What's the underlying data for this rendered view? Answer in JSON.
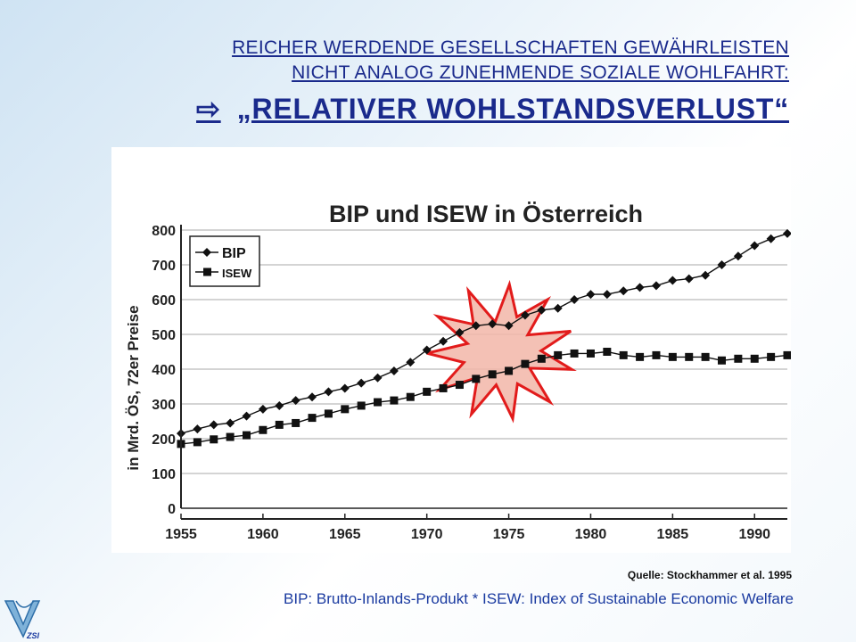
{
  "header": {
    "line1": "REICHER WERDENDE GESELLSCHAFTEN GEWÄHRLEISTEN",
    "line2": "NICHT ANALOG ZUNEHMENDE SOZIALE WOHLFAHRT:",
    "arrow_glyph": "⇨",
    "headline": "„RELATIVER WOHLSTANDSVERLUST“"
  },
  "source_note": "Quelle:  Stockhammer et al. 1995",
  "footer_note": "BIP: Brutto-Inlands-Produkt  *  ISEW: Index of Sustainable Economic Welfare",
  "logo_text": "ZSI",
  "colors": {
    "title_blue": "#1a2a8c",
    "footer_blue": "#1a3aa0",
    "starburst_stroke": "#e21b1b",
    "starburst_fill": "#f2b6a8",
    "underline_red": "#e21b1b"
  },
  "chart_data": {
    "type": "line",
    "title": "BIP und ISEW in Österreich",
    "ylabel": "in Mrd. ÖS, 72er Preise",
    "xlabel": "",
    "xlim": [
      1955,
      1992
    ],
    "ylim": [
      0,
      800
    ],
    "xticks": [
      1955,
      1960,
      1965,
      1970,
      1975,
      1980,
      1985,
      1990
    ],
    "yticks": [
      0,
      100,
      200,
      300,
      400,
      500,
      600,
      700,
      800
    ],
    "grid": "horizontal",
    "legend_position": "top-left",
    "x": [
      1955,
      1956,
      1957,
      1958,
      1959,
      1960,
      1961,
      1962,
      1963,
      1964,
      1965,
      1966,
      1967,
      1968,
      1969,
      1970,
      1971,
      1972,
      1973,
      1974,
      1975,
      1976,
      1977,
      1978,
      1979,
      1980,
      1981,
      1982,
      1983,
      1984,
      1985,
      1986,
      1987,
      1988,
      1989,
      1990,
      1991,
      1992
    ],
    "series": [
      {
        "name": "BIP",
        "marker": "diamond",
        "values": [
          215,
          228,
          240,
          245,
          265,
          285,
          295,
          310,
          320,
          335,
          345,
          360,
          375,
          395,
          420,
          455,
          480,
          505,
          525,
          530,
          525,
          555,
          570,
          575,
          600,
          615,
          615,
          625,
          635,
          640,
          655,
          660,
          670,
          700,
          725,
          755,
          775,
          790
        ]
      },
      {
        "name": "ISEW",
        "marker": "square",
        "values": [
          185,
          190,
          198,
          205,
          210,
          225,
          240,
          245,
          260,
          272,
          285,
          295,
          305,
          310,
          320,
          335,
          345,
          355,
          372,
          385,
          395,
          415,
          430,
          440,
          445,
          445,
          450,
          440,
          435,
          440,
          435,
          435,
          435,
          425,
          430,
          430,
          435,
          440
        ]
      }
    ],
    "annotation": {
      "type": "starburst",
      "x_range": [
        1970,
        1979
      ],
      "y_center": 450,
      "axis_highlight_range": [
        1973,
        1977
      ]
    }
  }
}
